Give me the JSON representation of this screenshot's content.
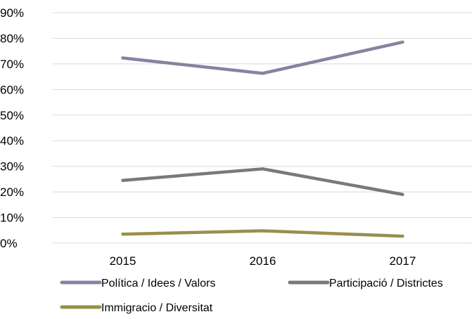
{
  "chart_data": {
    "type": "line",
    "title": "",
    "xlabel": "",
    "ylabel": "",
    "x": [
      "2015",
      "2016",
      "2017"
    ],
    "ylim": [
      0,
      90
    ],
    "yticks": [
      "0%",
      "10%",
      "20%",
      "30%",
      "40%",
      "50%",
      "60%",
      "70%",
      "80%",
      "90%"
    ],
    "grid": true,
    "legend_position": "bottom",
    "series": [
      {
        "name": "Política / Idees / Valors",
        "values": [
          72.3,
          66.3,
          78.5
        ],
        "color": "#8C80A0"
      },
      {
        "name": "Participació / Districtes",
        "values": [
          24.5,
          29.0,
          19.0
        ],
        "color": "#767C74"
      },
      {
        "name": "Immigracio / Diversitat",
        "values": [
          3.5,
          4.8,
          2.7
        ],
        "color": "#9A8F4C"
      }
    ]
  }
}
